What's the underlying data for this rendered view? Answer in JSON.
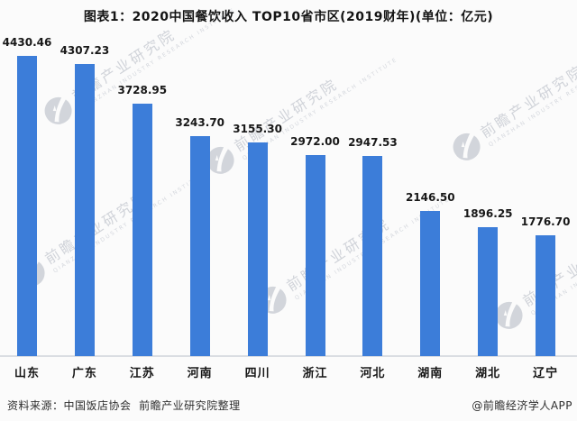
{
  "header": {
    "title": "图表1：2020中国餐饮收入 TOP10省市区(2019财年)(单位：亿元)"
  },
  "chart_data": {
    "type": "bar",
    "title": "图表1：2020中国餐饮收入 TOP10省市区(2019财年)(单位：亿元)",
    "unit": "亿元",
    "categories": [
      "山东",
      "广东",
      "江苏",
      "河南",
      "四川",
      "浙江",
      "河北",
      "湖南",
      "湖北",
      "辽宁"
    ],
    "values": [
      4430.46,
      4307.23,
      3728.95,
      3243.7,
      3155.3,
      2972.0,
      2947.53,
      2146.5,
      1896.25,
      1776.7
    ],
    "value_labels": [
      "4430.46",
      "4307.23",
      "3728.95",
      "3243.70",
      "3155.30",
      "2972.00",
      "2947.53",
      "2146.50",
      "1896.25",
      "1776.70"
    ],
    "bar_color": "#3c7dd9",
    "ylim": [
      0,
      4430.46
    ],
    "grid": false,
    "legend": null,
    "xlabel": "",
    "ylabel": ""
  },
  "watermark": {
    "text": "前瞻产业研究院",
    "subtext": "QIANZHAN INDUSTRY RESEARCH INSTITUTE",
    "logo": "qianzhan-bird-logo"
  },
  "footer": {
    "source": "资料来源：中国饭店协会  前瞻产业研究院整理",
    "credit": "@前瞻经济学人APP"
  }
}
